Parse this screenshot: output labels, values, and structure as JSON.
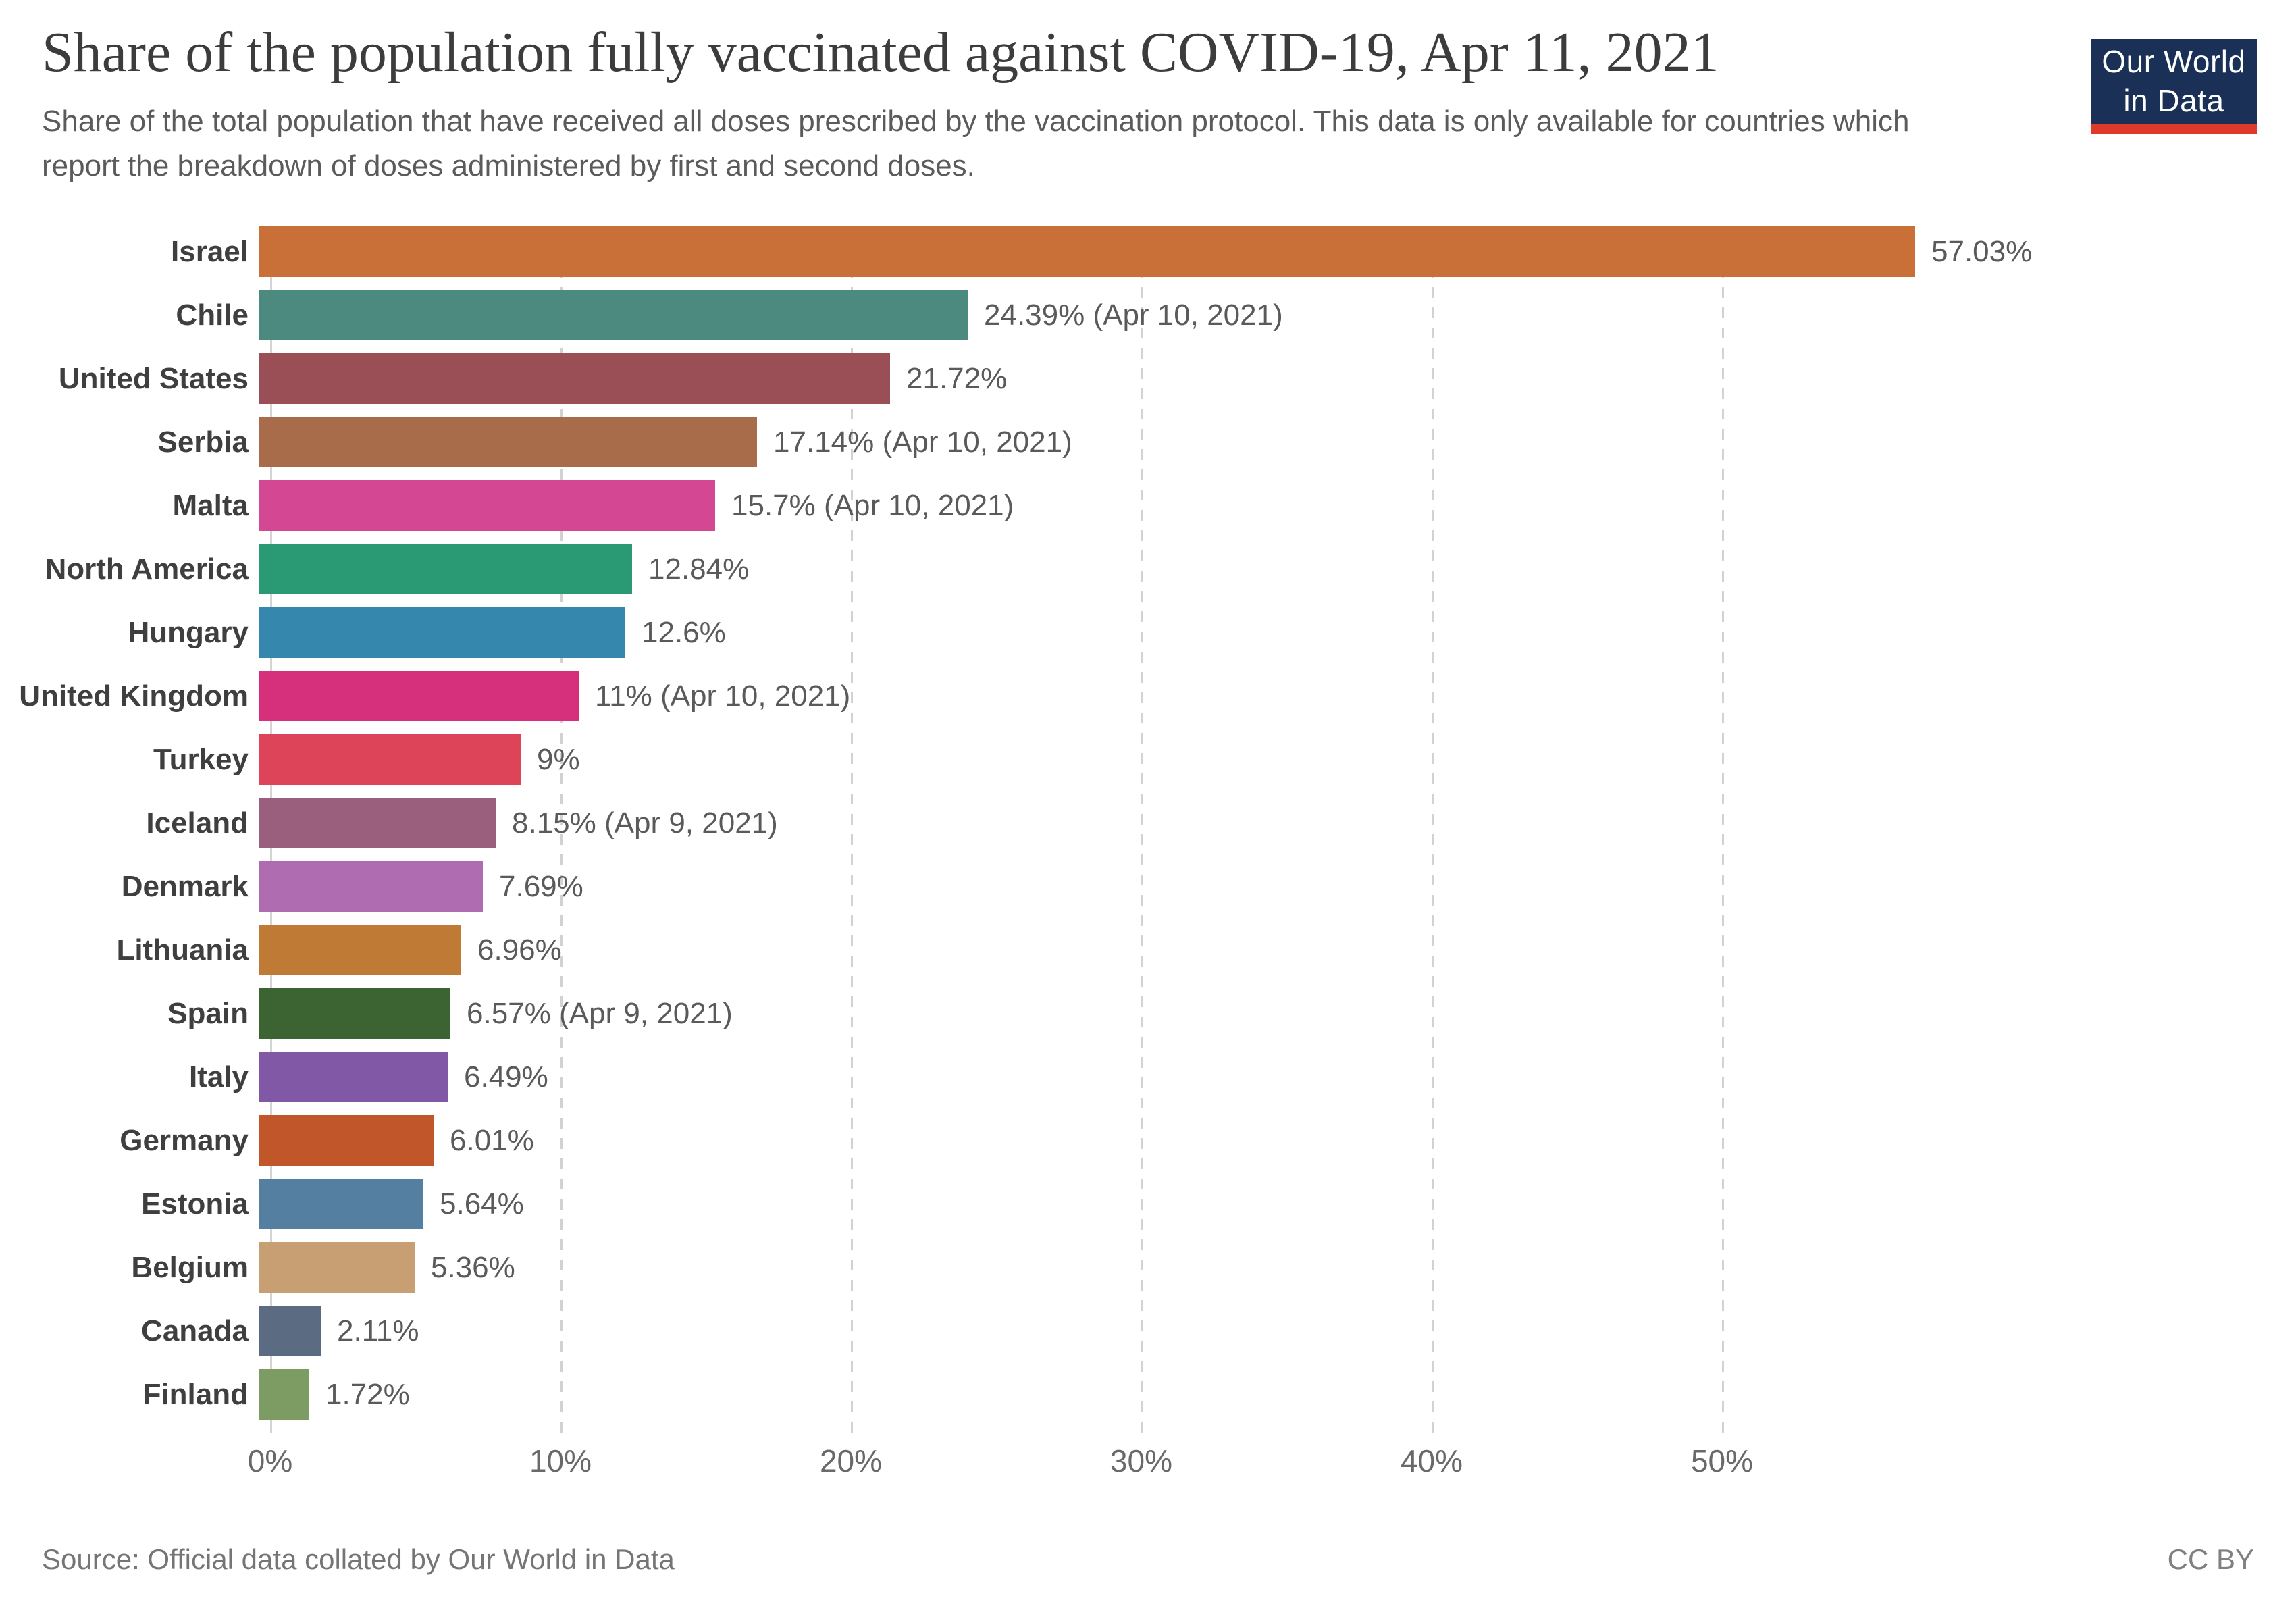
{
  "header": {
    "title": "Share of the population fully vaccinated against COVID-19, Apr 11, 2021",
    "subtitle": "Share of the total population that have received all doses prescribed by the vaccination protocol. This data is only available for countries which report the breakdown of doses administered by first and second doses."
  },
  "logo": {
    "line1": "Our World",
    "line2": "in Data",
    "bg_color": "#1a3056",
    "accent_color": "#de3a2b"
  },
  "chart_data": {
    "type": "bar",
    "orientation": "horizontal",
    "title": "Share of the population fully vaccinated against COVID-19, Apr 11, 2021",
    "xlabel": "",
    "ylabel": "",
    "unit": "%",
    "xlim": [
      0,
      57.03
    ],
    "grid": "vertical-dashed",
    "categories": [
      "Israel",
      "Chile",
      "United States",
      "Serbia",
      "Malta",
      "North America",
      "Hungary",
      "United Kingdom",
      "Turkey",
      "Iceland",
      "Denmark",
      "Lithuania",
      "Spain",
      "Italy",
      "Germany",
      "Estonia",
      "Belgium",
      "Canada",
      "Finland"
    ],
    "values": [
      57.03,
      24.39,
      21.72,
      17.14,
      15.7,
      12.84,
      12.6,
      11,
      9,
      8.15,
      7.69,
      6.96,
      6.57,
      6.49,
      6.01,
      5.64,
      5.36,
      2.11,
      1.72
    ],
    "value_labels": [
      "57.03%",
      "24.39% (Apr 10, 2021)",
      "21.72%",
      "17.14% (Apr 10, 2021)",
      "15.7% (Apr 10, 2021)",
      "12.84%",
      "12.6%",
      "11% (Apr 10, 2021)",
      "9%",
      "8.15% (Apr 9, 2021)",
      "7.69%",
      "6.96%",
      "6.57% (Apr 9, 2021)",
      "6.49%",
      "6.01%",
      "5.64%",
      "5.36%",
      "2.11%",
      "1.72%"
    ],
    "colors": [
      "#c97039",
      "#4c8a7f",
      "#9a4e55",
      "#a96c4a",
      "#d44893",
      "#2a9a74",
      "#3587ae",
      "#d62f7b",
      "#dd4459",
      "#9b5f7e",
      "#b06cb0",
      "#bf7b35",
      "#3c6432",
      "#8058a5",
      "#c1562a",
      "#557fa0",
      "#c89f72",
      "#5a6b82",
      "#7d9c63"
    ],
    "x_ticks": [
      {
        "value": 0,
        "label": "0%"
      },
      {
        "value": 10,
        "label": "10%"
      },
      {
        "value": 20,
        "label": "20%"
      },
      {
        "value": 30,
        "label": "30%"
      },
      {
        "value": 40,
        "label": "40%"
      },
      {
        "value": 50,
        "label": "50%"
      }
    ]
  },
  "footer": {
    "source": "Source: Official data collated by Our World in Data",
    "license": "CC BY"
  }
}
